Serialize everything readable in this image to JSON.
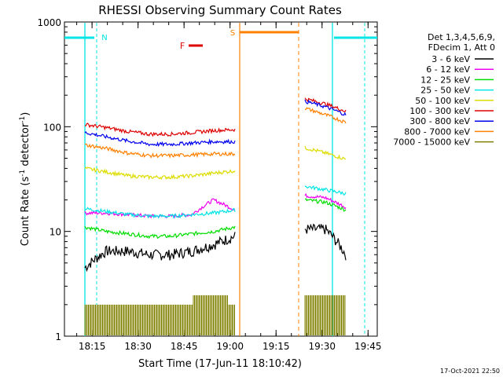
{
  "chart_data": {
    "type": "line",
    "title": "RHESSI Observing Summary Count Rates",
    "xlabel": "Start Time (17-Jun-11 18:10:42)",
    "ylabel_main": "Count Rate (s",
    "ylabel_sup1": "-1",
    "ylabel_mid": " detector",
    "ylabel_sup2": "-1",
    "ylabel_end": ")",
    "yscale": "log",
    "ylim": [
      1,
      1000
    ],
    "xlim_minutes": [
      18.1,
      19.8
    ],
    "x_ticks": [
      "18:15",
      "18:30",
      "18:45",
      "19:00",
      "19:15",
      "19:30",
      "19:45"
    ],
    "y_ticks": [
      "1",
      "10",
      "100",
      "1000"
    ],
    "legend_header": [
      "Det 1,3,4,5,6,9,",
      "FDecim 1, Att 0"
    ],
    "legend_location": "top-right",
    "markers": [
      {
        "label": "N",
        "color": "#00e5e5"
      },
      {
        "label": "F",
        "color": "#dd0000"
      },
      {
        "label": "S",
        "color": "#ff8000"
      }
    ],
    "series": [
      {
        "name": "3 - 6 keV",
        "color": "#000000",
        "seg1": [
          4.5,
          6.5,
          6.5,
          6.0,
          6.0,
          6.5,
          7.5,
          9.0
        ],
        "seg2": [
          10.5,
          10.5,
          6.0
        ]
      },
      {
        "name": "6 - 12 keV",
        "color": "#ee00ee",
        "seg1": [
          15.0,
          15.0,
          14.5,
          14.0,
          14.0,
          14.5,
          20.0,
          16.0
        ],
        "seg2": [
          22.0,
          21.0,
          17.0
        ]
      },
      {
        "name": "12 - 25 keV",
        "color": "#00dd00",
        "seg1": [
          11.0,
          10.0,
          9.5,
          9.0,
          9.0,
          9.5,
          10.0,
          11.0
        ],
        "seg2": [
          20.0,
          19.0,
          16.0
        ]
      },
      {
        "name": "25 - 50 keV",
        "color": "#00e5e5",
        "seg1": [
          16.5,
          15.5,
          14.5,
          14.0,
          14.0,
          14.5,
          15.0,
          16.0
        ],
        "seg2": [
          27.0,
          25.0,
          23.0
        ]
      },
      {
        "name": "50 - 100 keV",
        "color": "#dddd00",
        "seg1": [
          40.0,
          37.0,
          34.0,
          33.0,
          33.0,
          34.0,
          36.0,
          38.0
        ],
        "seg2": [
          63.0,
          56.0,
          49.0
        ]
      },
      {
        "name": "100 - 300 keV",
        "color": "#dd0000",
        "seg1": [
          105.0,
          98.0,
          90.0,
          85.0,
          85.0,
          88.0,
          92.0,
          94.0
        ],
        "seg2": [
          185.0,
          165.0,
          140.0
        ]
      },
      {
        "name": "300 - 800 keV",
        "color": "#0000ee",
        "seg1": [
          88.0,
          80.0,
          73.0,
          68.0,
          68.0,
          70.0,
          72.0,
          72.0
        ],
        "seg2": [
          175.0,
          155.0,
          130.0
        ]
      },
      {
        "name": "800 - 7000 keV",
        "color": "#ff8000",
        "seg1": [
          67.0,
          62.0,
          56.0,
          53.0,
          53.0,
          54.0,
          55.0,
          55.0
        ],
        "seg2": [
          150.0,
          130.0,
          110.0
        ]
      },
      {
        "name": "7000 - 15000 keV",
        "color": "#808000",
        "seg1": [
          2.0,
          2.0,
          2.0,
          2.0,
          2.0,
          2.0,
          2.0,
          2.0
        ],
        "seg2": [
          2.0,
          2.0,
          2.0
        ]
      }
    ]
  },
  "footer_date": "17-Oct-2021 22:50"
}
